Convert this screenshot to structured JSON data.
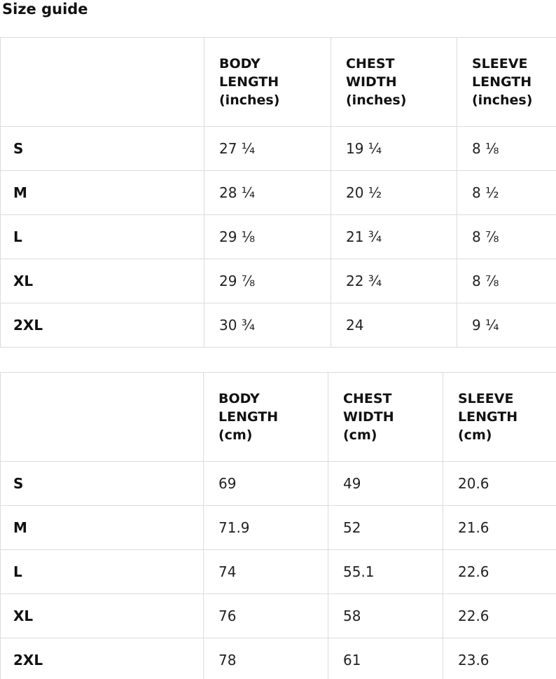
{
  "page": {
    "title": "Size guide"
  },
  "tables": [
    {
      "name": "inches",
      "headers": [
        "",
        "BODY\nLENGTH\n(inches)",
        "CHEST\nWIDTH\n(inches)",
        "SLEEVE\nLENGTH\n(inches)"
      ],
      "rows": [
        {
          "label": "S",
          "values": [
            "27 ¼",
            "19 ¼",
            "8 ⅛"
          ]
        },
        {
          "label": "M",
          "values": [
            "28 ¼",
            "20 ½",
            "8 ½"
          ]
        },
        {
          "label": "L",
          "values": [
            "29 ⅛",
            "21 ¾",
            "8 ⅞"
          ]
        },
        {
          "label": "XL",
          "values": [
            "29 ⅞",
            "22 ¾",
            "8 ⅞"
          ]
        },
        {
          "label": "2XL",
          "values": [
            "30 ¾",
            "24",
            "9 ¼"
          ]
        }
      ]
    },
    {
      "name": "cm",
      "headers": [
        "",
        "BODY\nLENGTH\n(cm)",
        "CHEST\nWIDTH\n(cm)",
        "SLEEVE\nLENGTH\n(cm)"
      ],
      "rows": [
        {
          "label": "S",
          "values": [
            "69",
            "49",
            "20.6"
          ]
        },
        {
          "label": "M",
          "values": [
            "71.9",
            "52",
            "21.6"
          ]
        },
        {
          "label": "L",
          "values": [
            "74",
            "55.1",
            "22.6"
          ]
        },
        {
          "label": "XL",
          "values": [
            "76",
            "58",
            "22.6"
          ]
        },
        {
          "label": "2XL",
          "values": [
            "78",
            "61",
            "23.6"
          ]
        }
      ]
    }
  ]
}
